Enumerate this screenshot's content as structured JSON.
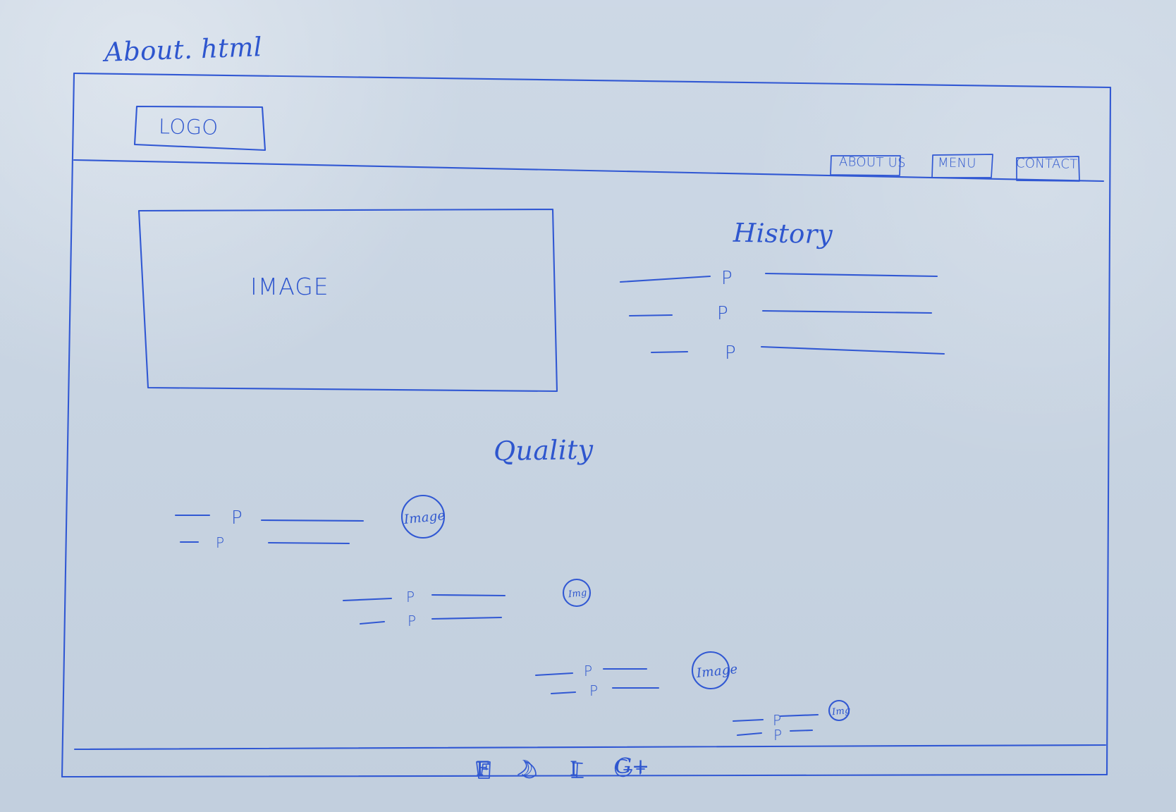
{
  "sketch": {
    "file_title": "About. html",
    "header": {
      "logo_label": "LOGO",
      "nav": [
        {
          "label": "ABOUT US"
        },
        {
          "label": "MENU"
        },
        {
          "label": "CONTACT"
        }
      ]
    },
    "main": {
      "image_label": "IMAGE",
      "history": {
        "title": "History",
        "paragraph_markers": [
          "P",
          "P",
          "P"
        ]
      },
      "quality": {
        "title": "Quality",
        "rows": [
          {
            "markers": [
              "P",
              "P"
            ],
            "image_label": "Image"
          },
          {
            "markers": [
              "P",
              "P"
            ],
            "image_label": "Img"
          },
          {
            "markers": [
              "P",
              "P"
            ],
            "image_label": "Image"
          },
          {
            "markers": [
              "P",
              "P"
            ],
            "image_label": "Img"
          }
        ]
      }
    },
    "footer": {
      "icons": [
        {
          "name": "facebook-icon",
          "label": "F"
        },
        {
          "name": "twitter-icon",
          "label": "☽"
        },
        {
          "name": "instagram-icon",
          "label": "I"
        },
        {
          "name": "google-plus-icon",
          "label": "G+"
        }
      ]
    }
  }
}
